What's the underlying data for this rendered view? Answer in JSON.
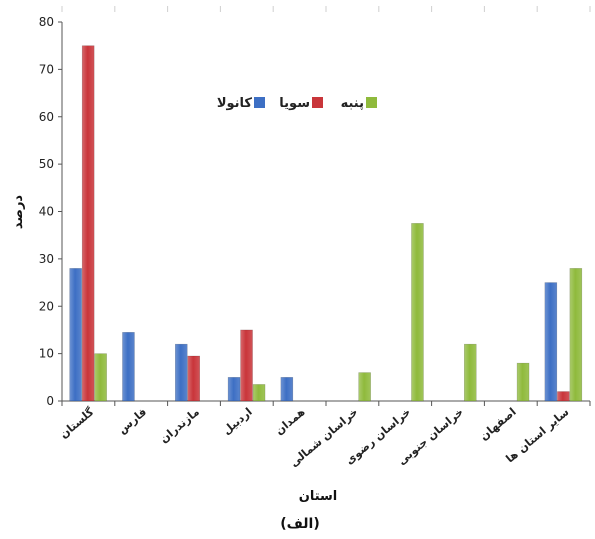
{
  "chart_data": {
    "type": "bar",
    "xlabel": "استان",
    "ylabel": "درصد",
    "caption": "(الف)",
    "ylim": [
      0,
      80
    ],
    "yticks": [
      0,
      10,
      20,
      30,
      40,
      50,
      60,
      70,
      80
    ],
    "grid": false,
    "legend_position": "upper-middle",
    "categories": [
      "گلستان",
      "فارس",
      "مازندران",
      "اردبیل",
      "همدان",
      "خراسان شمالی",
      "خراسان رضوی",
      "خراسان جنوبی",
      "اصفهان",
      "سایر استان ها"
    ],
    "series": [
      {
        "name": "کانولا",
        "color": "#3d6fc4",
        "values": [
          28,
          14.5,
          12,
          5,
          5,
          0,
          0,
          0,
          0,
          25
        ]
      },
      {
        "name": "سویا",
        "color": "#c9353a",
        "values": [
          75,
          0,
          9.5,
          15,
          0,
          0,
          0,
          0,
          0,
          2
        ]
      },
      {
        "name": "پنبه",
        "color": "#8fba3c",
        "values": [
          10,
          0,
          0,
          3.5,
          0,
          6,
          37.5,
          12,
          8,
          28
        ]
      }
    ]
  }
}
